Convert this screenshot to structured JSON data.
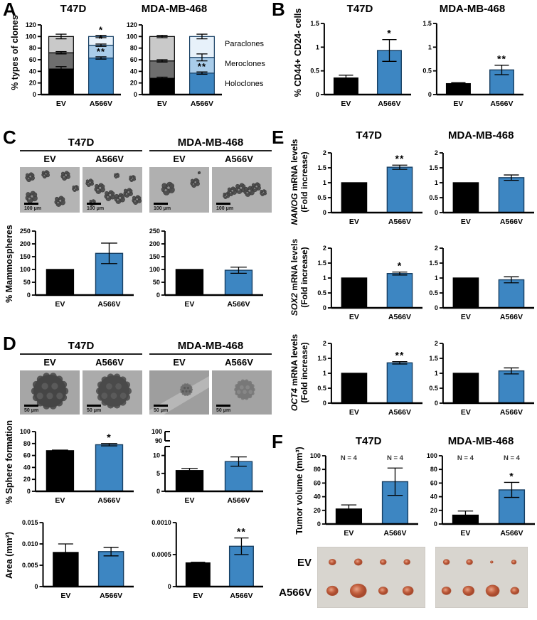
{
  "colors": {
    "black": "#000000",
    "blue": "#3d86c2",
    "blue_light": "#a9cce9",
    "blue_pale": "#e7f1fa",
    "gray_dark": "#6e6e6e",
    "gray_light": "#c9c9c9",
    "blue_border": "#173f63",
    "axis": "#000000",
    "tumor": "#c2603f",
    "photo_bg": "#d8d5cf"
  },
  "panelA": {
    "label": "A",
    "ylabel": "% types of clones",
    "titles": [
      "T47D",
      "MDA-MB-468"
    ],
    "legend": [
      "Paraclones",
      "Meroclones",
      "Holoclones"
    ]
  },
  "panelB": {
    "label": "B",
    "ylabel": "% CD44+ CD24- cells",
    "titles": [
      "T47D",
      "MDA-MB-468"
    ]
  },
  "panelC": {
    "label": "C",
    "ylabel": "% Mammospheres",
    "scalebar": "100 μm",
    "groups": [
      {
        "title": "T47D",
        "cols": [
          "EV",
          "A566V"
        ]
      },
      {
        "title": "MDA-MB-468",
        "cols": [
          "EV",
          "A566V"
        ]
      }
    ]
  },
  "panelD": {
    "label": "D",
    "ylabel_sphere": "% Sphere formation",
    "ylabel_area": "Area (mm²)",
    "scalebar": "50 μm",
    "groups": [
      {
        "title": "T47D",
        "cols": [
          "EV",
          "A566V"
        ]
      },
      {
        "title": "MDA-MB-468",
        "cols": [
          "EV",
          "A566V"
        ]
      }
    ]
  },
  "panelE": {
    "label": "E",
    "titles": [
      "T47D",
      "MDA-MB-468"
    ],
    "rows": [
      {
        "gene": "NANOG",
        "rest": " mRNA levels",
        "line2": "(Fold increase)"
      },
      {
        "gene": "SOX2",
        "rest": " mRNA levels",
        "line2": "(Fold increase)"
      },
      {
        "gene": "OCT4",
        "rest": " mRNA levels",
        "line2": "(Fold increase)"
      }
    ]
  },
  "panelF": {
    "label": "F",
    "ylabel": "Tumor volume (mm³)",
    "titles": [
      "T47D",
      "MDA-MB-468"
    ],
    "rows": [
      "EV",
      "A566V"
    ]
  },
  "chart_data": [
    {
      "id": "A-T47D",
      "panel": "A",
      "type": "stacked",
      "title": "T47D",
      "ylabel": "% types of clones",
      "ymax": 120,
      "yticks": [
        "0",
        "20",
        "40",
        "60",
        "80",
        "100",
        "120"
      ],
      "categories": [
        "EV",
        "A566V"
      ],
      "series_labels": [
        "Holoclones",
        "Meroclones",
        "Paraclones"
      ],
      "stacks": [
        [
          {
            "v": 44,
            "err": 4,
            "color": "black",
            "sig": ""
          },
          {
            "v": 28,
            "err": 2,
            "color": "gray_dark",
            "sig": ""
          },
          {
            "v": 28,
            "err": 4,
            "color": "gray_light",
            "sig": ""
          }
        ],
        [
          {
            "v": 63,
            "err": 2,
            "color": "blue",
            "sig": "**"
          },
          {
            "v": 22,
            "err": 2,
            "color": "blue_light",
            "sig": "*"
          },
          {
            "v": 15,
            "err": 2,
            "color": "blue_pale",
            "sig": "*"
          }
        ]
      ]
    },
    {
      "id": "A-MDA",
      "panel": "A",
      "type": "stacked",
      "title": "MDA-MB-468",
      "ylabel": "% types of clones",
      "ymax": 120,
      "yticks": [
        "0",
        "20",
        "40",
        "60",
        "80",
        "100",
        "120"
      ],
      "categories": [
        "EV",
        "A566V"
      ],
      "series_labels": [
        "Holoclones",
        "Meroclones",
        "Paraclones"
      ],
      "stacks": [
        [
          {
            "v": 28,
            "err": 2,
            "color": "black",
            "sig": ""
          },
          {
            "v": 30,
            "err": 2,
            "color": "gray_dark",
            "sig": ""
          },
          {
            "v": 42,
            "err": 2,
            "color": "gray_light",
            "sig": ""
          }
        ],
        [
          {
            "v": 37,
            "err": 2,
            "color": "blue",
            "sig": "**"
          },
          {
            "v": 27,
            "err": 6,
            "color": "blue_light",
            "sig": ""
          },
          {
            "v": 36,
            "err": 4,
            "color": "blue_pale",
            "sig": ""
          }
        ]
      ]
    },
    {
      "id": "B-T47D",
      "panel": "B",
      "type": "bar",
      "title": "T47D",
      "ylabel": "% CD44+ CD24- cells",
      "ymax": 1.5,
      "yticks": [
        "0",
        "0.5",
        "1",
        "1.5"
      ],
      "categories": [
        "EV",
        "A566V"
      ],
      "bars": [
        {
          "v": 0.35,
          "err": 0.06,
          "color": "black",
          "sig": ""
        },
        {
          "v": 0.93,
          "err": 0.23,
          "color": "blue",
          "sig": "*"
        }
      ]
    },
    {
      "id": "B-MDA",
      "panel": "B",
      "type": "bar",
      "title": "MDA-MB-468",
      "ylabel": "% CD44+ CD24- cells",
      "ymax": 1.5,
      "yticks": [
        "0",
        "0.5",
        "1",
        "1.5"
      ],
      "categories": [
        "EV",
        "A566V"
      ],
      "bars": [
        {
          "v": 0.23,
          "err": 0.02,
          "color": "black",
          "sig": ""
        },
        {
          "v": 0.52,
          "err": 0.1,
          "color": "blue",
          "sig": "**"
        }
      ]
    },
    {
      "id": "C-T47D",
      "panel": "C",
      "type": "bar",
      "title": "T47D",
      "ylabel": "% Mammospheres",
      "ymax": 250,
      "yticks": [
        "0",
        "50",
        "100",
        "150",
        "200",
        "250"
      ],
      "categories": [
        "EV",
        "A566V"
      ],
      "bars": [
        {
          "v": 100,
          "err": 0,
          "color": "black",
          "sig": ""
        },
        {
          "v": 163,
          "err": 40,
          "color": "blue",
          "sig": ""
        }
      ]
    },
    {
      "id": "C-MDA",
      "panel": "C",
      "type": "bar",
      "title": "MDA-MB-468",
      "ylabel": "% Mammospheres",
      "ymax": 250,
      "yticks": [
        "0",
        "50",
        "100",
        "150",
        "200",
        "250"
      ],
      "categories": [
        "EV",
        "A566V"
      ],
      "bars": [
        {
          "v": 100,
          "err": 0,
          "color": "black",
          "sig": ""
        },
        {
          "v": 97,
          "err": 12,
          "color": "blue",
          "sig": ""
        }
      ]
    },
    {
      "id": "D-sphere-T47D",
      "panel": "D",
      "type": "bar",
      "title": "T47D",
      "ylabel": "% Sphere formation",
      "ymax": 100,
      "yticks": [
        "0",
        "20",
        "40",
        "60",
        "80",
        "100"
      ],
      "categories": [
        "EV",
        "A566V"
      ],
      "bars": [
        {
          "v": 68,
          "err": 1,
          "color": "black",
          "sig": ""
        },
        {
          "v": 78,
          "err": 2,
          "color": "blue",
          "sig": "*"
        }
      ]
    },
    {
      "id": "D-sphere-MDA",
      "panel": "D",
      "type": "broken",
      "title": "MDA-MB-468",
      "ylabel": "% Sphere formation",
      "lowerMax": 12.5,
      "lowerTicks": [
        "0",
        "5",
        "10"
      ],
      "upperTicks": [
        "90",
        "100"
      ],
      "categories": [
        "EV",
        "A566V"
      ],
      "bars": [
        {
          "v": 5.8,
          "err": 0.6,
          "color": "black",
          "sig": ""
        },
        {
          "v": 8.3,
          "err": 1.3,
          "color": "blue",
          "sig": ""
        }
      ]
    },
    {
      "id": "D-area-T47D",
      "panel": "D",
      "type": "bar",
      "title": "T47D",
      "ylabel": "Area (mm²)",
      "ymax": 0.015,
      "yticks": [
        "0",
        "0.005",
        "0.010",
        "0.015"
      ],
      "categories": [
        "EV",
        "A566V"
      ],
      "bars": [
        {
          "v": 0.008,
          "err": 0.002,
          "color": "black",
          "sig": ""
        },
        {
          "v": 0.0082,
          "err": 0.001,
          "color": "blue",
          "sig": ""
        }
      ]
    },
    {
      "id": "D-area-MDA",
      "panel": "D",
      "type": "bar",
      "title": "MDA-MB-468",
      "ylabel": "Area (mm²)",
      "ymax": 0.001,
      "yticks": [
        "0",
        "0.0005",
        "0.0010"
      ],
      "categories": [
        "EV",
        "A566V"
      ],
      "bars": [
        {
          "v": 0.00037,
          "err": 1e-05,
          "color": "black",
          "sig": ""
        },
        {
          "v": 0.00063,
          "err": 0.00013,
          "color": "blue",
          "sig": "**"
        }
      ]
    },
    {
      "id": "E-NANOG-T47D",
      "panel": "E",
      "type": "bar",
      "title": "T47D",
      "ylabel": "NANOG mRNA levels (Fold increase)",
      "ymax": 2,
      "yticks": [
        "0",
        "0.5",
        "1",
        "1.5",
        "2"
      ],
      "categories": [
        "EV",
        "A566V"
      ],
      "bars": [
        {
          "v": 1,
          "err": 0,
          "color": "black",
          "sig": ""
        },
        {
          "v": 1.52,
          "err": 0.07,
          "color": "blue",
          "sig": "**"
        }
      ]
    },
    {
      "id": "E-NANOG-MDA",
      "panel": "E",
      "type": "bar",
      "title": "MDA-MB-468",
      "ylabel": "NANOG mRNA levels (Fold increase)",
      "ymax": 2,
      "yticks": [
        "0",
        "0.5",
        "1",
        "1.5",
        "2"
      ],
      "categories": [
        "EV",
        "A566V"
      ],
      "bars": [
        {
          "v": 1,
          "err": 0,
          "color": "black",
          "sig": ""
        },
        {
          "v": 1.17,
          "err": 0.09,
          "color": "blue",
          "sig": ""
        }
      ]
    },
    {
      "id": "E-SOX2-T47D",
      "panel": "E",
      "type": "bar",
      "title": "T47D",
      "ylabel": "SOX2 mRNA levels (Fold increase)",
      "ymax": 2,
      "yticks": [
        "0",
        "0.5",
        "1",
        "1.5",
        "2"
      ],
      "categories": [
        "EV",
        "A566V"
      ],
      "bars": [
        {
          "v": 1,
          "err": 0,
          "color": "black",
          "sig": ""
        },
        {
          "v": 1.15,
          "err": 0.05,
          "color": "blue",
          "sig": "*"
        }
      ]
    },
    {
      "id": "E-SOX2-MDA",
      "panel": "E",
      "type": "bar",
      "title": "MDA-MB-468",
      "ylabel": "SOX2 mRNA levels (Fold increase)",
      "ymax": 2,
      "yticks": [
        "0",
        "0.5",
        "1",
        "1.5",
        "2"
      ],
      "categories": [
        "EV",
        "A566V"
      ],
      "bars": [
        {
          "v": 1,
          "err": 0,
          "color": "black",
          "sig": ""
        },
        {
          "v": 0.94,
          "err": 0.1,
          "color": "blue",
          "sig": ""
        }
      ]
    },
    {
      "id": "E-OCT4-T47D",
      "panel": "E",
      "type": "bar",
      "title": "T47D",
      "ylabel": "OCT4 mRNA levels (Fold increase)",
      "ymax": 2,
      "yticks": [
        "0",
        "0.5",
        "1",
        "1.5",
        "2"
      ],
      "categories": [
        "EV",
        "A566V"
      ],
      "bars": [
        {
          "v": 1,
          "err": 0,
          "color": "black",
          "sig": ""
        },
        {
          "v": 1.35,
          "err": 0.04,
          "color": "blue",
          "sig": "**"
        }
      ]
    },
    {
      "id": "E-OCT4-MDA",
      "panel": "E",
      "type": "bar",
      "title": "MDA-MB-468",
      "ylabel": "OCT4 mRNA levels (Fold increase)",
      "ymax": 2,
      "yticks": [
        "0",
        "0.5",
        "1",
        "1.5",
        "2"
      ],
      "categories": [
        "EV",
        "A566V"
      ],
      "bars": [
        {
          "v": 1,
          "err": 0,
          "color": "black",
          "sig": ""
        },
        {
          "v": 1.08,
          "err": 0.1,
          "color": "blue",
          "sig": ""
        }
      ]
    },
    {
      "id": "F-T47D",
      "panel": "F",
      "type": "bar",
      "title": "T47D",
      "ylabel": "Tumor volume (mm³)",
      "ymax": 100,
      "yticks": [
        "0",
        "20",
        "40",
        "60",
        "80",
        "100"
      ],
      "categories": [
        "EV",
        "A566V"
      ],
      "toplabels": [
        "N = 4",
        "N = 4"
      ],
      "bars": [
        {
          "v": 22,
          "err": 6,
          "color": "black",
          "sig": ""
        },
        {
          "v": 62,
          "err": 20,
          "color": "blue",
          "sig": ""
        }
      ]
    },
    {
      "id": "F-MDA",
      "panel": "F",
      "type": "bar",
      "title": "MDA-MB-468",
      "ylabel": "Tumor volume (mm³)",
      "ymax": 100,
      "yticks": [
        "0",
        "20",
        "40",
        "60",
        "80",
        "100"
      ],
      "categories": [
        "EV",
        "A566V"
      ],
      "toplabels": [
        "N = 4",
        "N = 4"
      ],
      "bars": [
        {
          "v": 13,
          "err": 6,
          "color": "black",
          "sig": ""
        },
        {
          "v": 50,
          "err": 11,
          "color": "blue",
          "sig": "*"
        }
      ]
    }
  ]
}
